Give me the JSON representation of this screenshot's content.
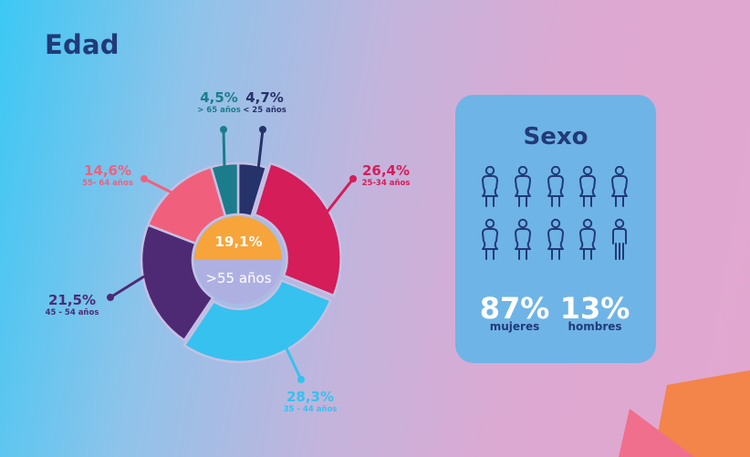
{
  "title": "Edad",
  "chart_data": {
    "type": "donut",
    "title": "Edad",
    "center": {
      "value": "19,1%",
      "label": ">55 años",
      "fraction": 0.191
    },
    "slices": [
      {
        "label": "< 25 años",
        "value": 4.7,
        "value_text": "4,7%",
        "color": "#26326a"
      },
      {
        "label": "25-34 años",
        "value": 26.4,
        "value_text": "26,4%",
        "color": "#d41d59"
      },
      {
        "label": "35 - 44 años",
        "value": 28.3,
        "value_text": "28,3%",
        "color": "#36c1ef"
      },
      {
        "label": "45 - 54 años",
        "value": 21.5,
        "value_text": "21,5%",
        "color": "#4e2a74"
      },
      {
        "label": "55- 64 años",
        "value": 14.6,
        "value_text": "14,6%",
        "color": "#f0607d"
      },
      {
        "label": "> 65 años",
        "value": 4.5,
        "value_text": "4,5%",
        "color": "#1c7c8c"
      }
    ],
    "center_colors": {
      "top": "#f7a43a",
      "bottom": "#aeb0e2"
    }
  },
  "sexo": {
    "title": "Sexo",
    "women": {
      "percent": "87%",
      "label": "mujeres"
    },
    "men": {
      "percent": "13%",
      "label": "hombres"
    },
    "icon_color": "#213a78"
  }
}
